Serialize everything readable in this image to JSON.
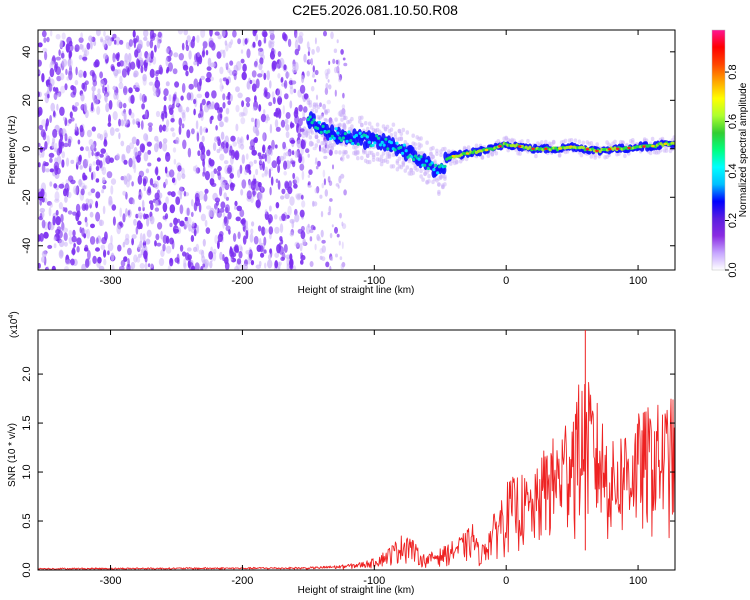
{
  "title": "C2E5.2026.081.10.50.R08",
  "chart_data": [
    {
      "type": "heatmap",
      "xlabel": "Height of straight line (km)",
      "ylabel": "Frequency (Hz)",
      "xlim": [
        -355,
        128
      ],
      "ylim": [
        -50,
        49
      ],
      "xticks": [
        -300,
        -200,
        -100,
        0,
        100
      ],
      "xtick_labels": [
        "-300",
        "-200",
        "-100",
        "0",
        "100"
      ],
      "yticks": [
        -40,
        -20,
        0,
        20,
        40
      ],
      "ytick_labels": [
        "-40",
        "-20",
        "0",
        "20",
        "40"
      ],
      "noise_region_km": [
        -355,
        -150
      ],
      "scattered_noise_region_km": [
        -150,
        -122
      ],
      "ridge": {
        "x": [
          -150,
          -140,
          -130,
          -120,
          -110,
          -100,
          -90,
          -80,
          -70,
          -60,
          -50,
          -45,
          -40,
          -30,
          -20,
          -10,
          0,
          10,
          20,
          30,
          40,
          50,
          60,
          70,
          80,
          90,
          100,
          110,
          120,
          128
        ],
        "y": [
          12,
          8,
          6,
          5,
          4,
          3,
          2,
          0,
          -3,
          -6,
          -10,
          -4,
          -3,
          -2,
          -1,
          0,
          2,
          1,
          0,
          0,
          0,
          1,
          0,
          -1,
          0,
          0,
          1,
          1,
          2,
          2
        ]
      },
      "colorbar": {
        "label": "Normalized spectral amplitude",
        "range": [
          0,
          0.97
        ],
        "ticks": [
          0.0,
          0.2,
          0.4,
          0.6,
          0.8
        ],
        "tick_labels": [
          "0.0",
          "0.2",
          "0.4",
          "0.6",
          "0.8"
        ],
        "colors": [
          "#ffffff",
          "#c6a5ff",
          "#8a2be2",
          "#5a1ee0",
          "#0000ff",
          "#00bfff",
          "#00ffff",
          "#00ff7f",
          "#32cd32",
          "#adff2f",
          "#ffff00",
          "#ffa500",
          "#ff4500",
          "#ff0000",
          "#ff1493"
        ]
      },
      "colors": {
        "noise": "#7b2ef0",
        "noise_light": "#c9b0f8",
        "ridge_core": "#00e5ff",
        "ridge_edge": "#1010ff",
        "ridge_hot": "#ff2020"
      }
    },
    {
      "type": "line",
      "xlabel": "Height of straight line (km)",
      "ylabel": "SNR (10 * v/v)",
      "scale_label": "(x10",
      "scale_exponent": "4",
      "scale_close": ")",
      "xlim": [
        -355,
        128
      ],
      "ylim": [
        0,
        2.45
      ],
      "xticks": [
        -300,
        -200,
        -100,
        0,
        100
      ],
      "xtick_labels": [
        "-300",
        "-200",
        "-100",
        "0",
        "100"
      ],
      "yticks": [
        0.0,
        0.5,
        1.0,
        1.5,
        2.0
      ],
      "ytick_labels": [
        "0.0",
        "0.5",
        "1.0",
        "1.5",
        "2.0"
      ],
      "color": "#ee2222",
      "envelope": {
        "x": [
          -355,
          -250,
          -150,
          -125,
          -110,
          -100,
          -90,
          -80,
          -75,
          -70,
          -65,
          -60,
          -55,
          -50,
          -40,
          -30,
          -25,
          -20,
          -10,
          0,
          10,
          20,
          30,
          40,
          50,
          60,
          70,
          80,
          90,
          100,
          110,
          120,
          128
        ],
        "y": [
          0.02,
          0.025,
          0.03,
          0.05,
          0.08,
          0.12,
          0.22,
          0.35,
          0.42,
          0.3,
          0.18,
          0.15,
          0.2,
          0.22,
          0.3,
          0.4,
          0.5,
          0.2,
          0.55,
          0.9,
          1.0,
          0.9,
          1.3,
          1.4,
          1.8,
          2.0,
          1.7,
          1.3,
          1.5,
          1.6,
          1.7,
          1.7,
          1.8
        ]
      }
    }
  ]
}
